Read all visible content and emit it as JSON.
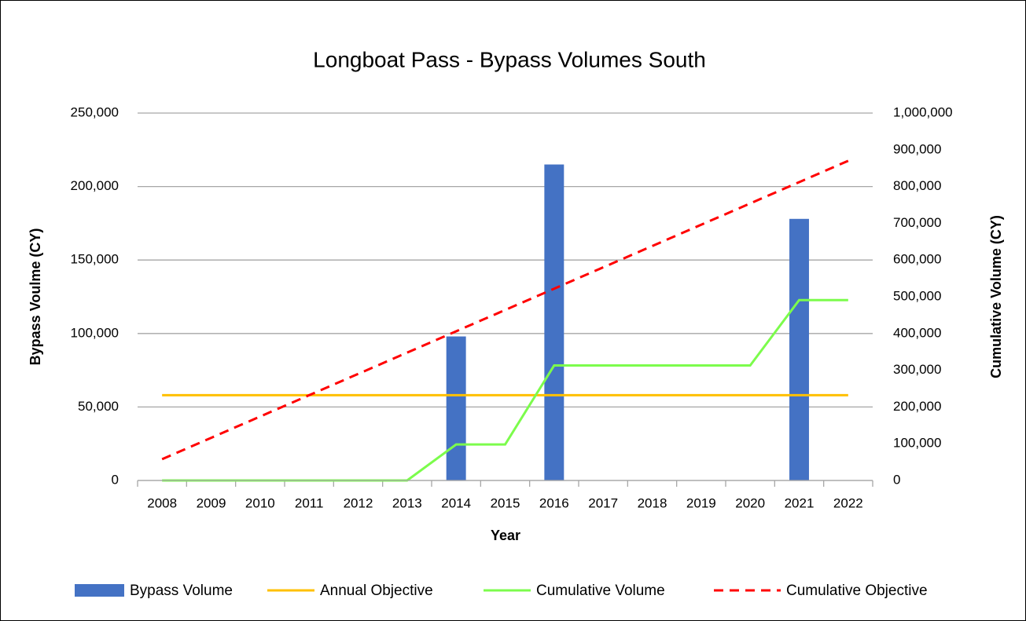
{
  "chart_data": {
    "type": "combo",
    "title": "Longboat Pass - Bypass Volumes South",
    "x_label": "Year",
    "y_label": "Bypass Voulme (CY)",
    "y2_label": "Cumulative Volume (CY)",
    "categories": [
      "2008",
      "2009",
      "2010",
      "2011",
      "2012",
      "2013",
      "2014",
      "2015",
      "2016",
      "2017",
      "2018",
      "2019",
      "2020",
      "2021",
      "2022"
    ],
    "series": [
      {
        "name": "Bypass Volume",
        "type": "bar",
        "color": "#4472c4",
        "values": [
          0,
          0,
          0,
          0,
          0,
          0,
          98000,
          0,
          215000,
          0,
          0,
          0,
          0,
          178000,
          0
        ]
      },
      {
        "name": "Annual Objective",
        "type": "line",
        "color": "#ffc000",
        "values": [
          58000,
          58000,
          58000,
          58000,
          58000,
          58000,
          58000,
          58000,
          58000,
          58000,
          58000,
          58000,
          58000,
          58000,
          58000
        ]
      },
      {
        "name": "Cumulative Volume",
        "type": "line",
        "color": "#7cfc4c",
        "axis": "y2",
        "values": [
          0,
          0,
          0,
          0,
          0,
          0,
          98000,
          98000,
          313000,
          313000,
          313000,
          313000,
          313000,
          491000,
          491000
        ]
      },
      {
        "name": "Cumulative Objective",
        "type": "line",
        "color": "#ff0000",
        "axis": "y2",
        "dashed": true,
        "values": [
          58000,
          116000,
          174000,
          232000,
          290000,
          348000,
          406000,
          464000,
          522000,
          580000,
          638000,
          696000,
          754000,
          812000,
          870000
        ]
      }
    ],
    "ylim": [
      0,
      250000
    ],
    "yticks": [
      0,
      {
        "value": 50000,
        "label": "50,000"
      },
      {
        "value": 100000,
        "label": "100,000"
      },
      {
        "value": 150000,
        "label": "150,000"
      },
      {
        "value": 200000,
        "label": "200,000"
      },
      {
        "value": 250000,
        "label": "250,000"
      }
    ],
    "y2lim": [
      0,
      1000000
    ],
    "y2ticks": [
      0,
      {
        "value": 100000,
        "label": "100,000"
      },
      {
        "value": 200000,
        "label": "200,000"
      },
      {
        "value": 300000,
        "label": "300,000"
      },
      {
        "value": 400000,
        "label": "400,000"
      },
      {
        "value": 500000,
        "label": "500,000"
      },
      {
        "value": 600000,
        "label": "600,000"
      },
      {
        "value": 700000,
        "label": "700,000"
      },
      {
        "value": 800000,
        "label": "800,000"
      },
      {
        "value": 900000,
        "label": "900,000"
      },
      {
        "value": 1000000,
        "label": "1,000,000"
      }
    ],
    "grid": true,
    "legend": "bottom"
  }
}
